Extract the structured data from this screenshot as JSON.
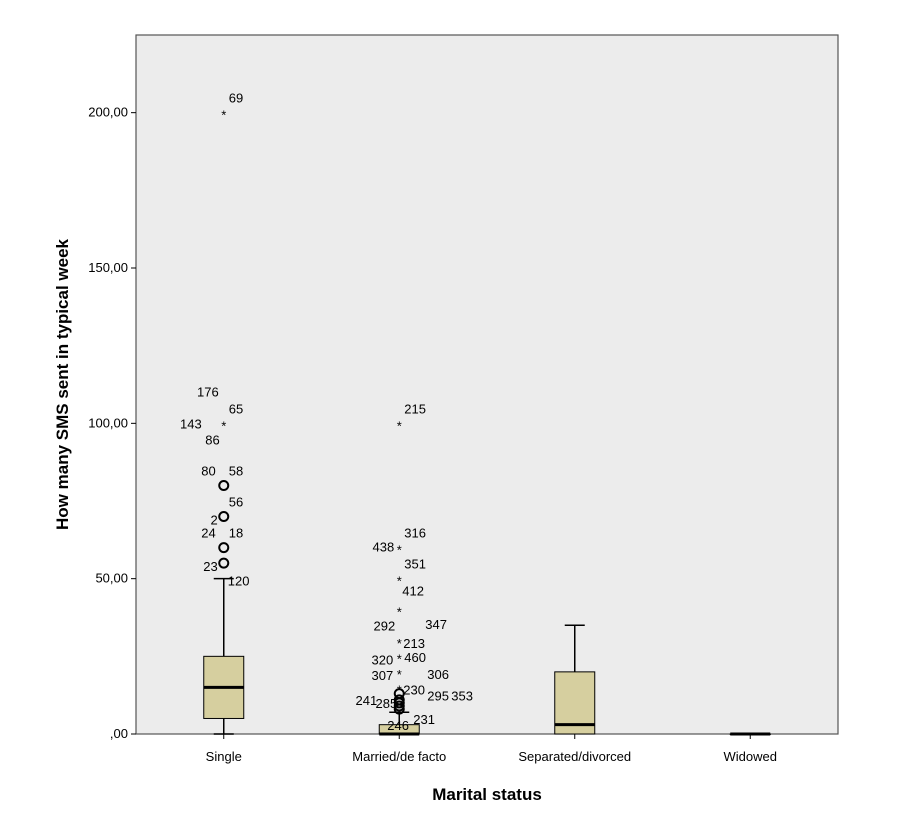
{
  "colors": {
    "plot_background": "#ececec",
    "box_fill": "#d6cf9f",
    "stroke": "#000000"
  },
  "chart_data": {
    "type": "boxplot",
    "xlabel": "Marital status",
    "ylabel": "How many SMS sent in typical week",
    "ylim": [
      0,
      225
    ],
    "yticks": [
      {
        "value": 0,
        "label": ",00"
      },
      {
        "value": 50,
        "label": "50,00"
      },
      {
        "value": 100,
        "label": "100,00"
      },
      {
        "value": 150,
        "label": "150,00"
      },
      {
        "value": 200,
        "label": "200,00"
      }
    ],
    "grid": false,
    "categories": [
      "Single",
      "Married/de facto",
      "Separated/divorced",
      "Widowed"
    ],
    "boxes": [
      {
        "category": "Single",
        "whisker_low": 0,
        "q1": 5,
        "median": 15,
        "q3": 25,
        "whisker_high": 50,
        "outliers": [
          {
            "value": 200,
            "marker": "star",
            "labels": [
              {
                "text": "69",
                "pos": "upper-right"
              }
            ]
          },
          {
            "value": 100,
            "marker": "star",
            "labels": [
              {
                "text": "176",
                "pos": "upper-left-far"
              },
              {
                "text": "65",
                "pos": "upper-right"
              },
              {
                "text": "143",
                "pos": "left-far"
              },
              {
                "text": "86",
                "pos": "lower-left"
              }
            ]
          },
          {
            "value": 80,
            "marker": "circle",
            "labels": [
              {
                "text": "80",
                "pos": "upper-left"
              },
              {
                "text": "58",
                "pos": "upper-right"
              }
            ]
          },
          {
            "value": 70,
            "marker": "circle",
            "labels": [
              {
                "text": "2",
                "pos": "upper-left-near"
              },
              {
                "text": "56",
                "pos": "upper-right"
              }
            ]
          },
          {
            "value": 60,
            "marker": "circle",
            "labels": [
              {
                "text": "24",
                "pos": "upper-left"
              },
              {
                "text": "18",
                "pos": "upper-right"
              }
            ]
          },
          {
            "value": 55,
            "marker": "circle",
            "labels": [
              {
                "text": "23",
                "pos": "left"
              }
            ]
          },
          {
            "value": 50,
            "marker": "none",
            "labels": [
              {
                "text": "120",
                "pos": "right-near"
              }
            ]
          }
        ]
      },
      {
        "category": "Married/de facto",
        "whisker_low": 0,
        "q1": 0,
        "median": 0,
        "q3": 3,
        "whisker_high": 7,
        "outliers": [
          {
            "value": 100,
            "marker": "star",
            "labels": [
              {
                "text": "215",
                "pos": "upper-right"
              }
            ]
          },
          {
            "value": 60,
            "marker": "star",
            "labels": [
              {
                "text": "316",
                "pos": "upper-right"
              }
            ]
          },
          {
            "value": 50,
            "marker": "star",
            "labels": [
              {
                "text": "438",
                "pos": "upper-left-far"
              },
              {
                "text": "351",
                "pos": "upper-right"
              },
              {
                "text": "412",
                "pos": "lower-right"
              }
            ]
          },
          {
            "value": 40,
            "marker": "star",
            "labels": [
              {
                "text": "292",
                "pos": "lower-left"
              }
            ]
          },
          {
            "value": 30,
            "marker": "star",
            "labels": [
              {
                "text": "213",
                "pos": "right-near"
              },
              {
                "text": "347",
                "pos": "upper-right-far"
              }
            ]
          },
          {
            "value": 25,
            "marker": "star",
            "labels": [
              {
                "text": "320",
                "pos": "left"
              }
            ]
          },
          {
            "value": 20,
            "marker": "star",
            "labels": [
              {
                "text": "307",
                "pos": "left"
              },
              {
                "text": "460",
                "pos": "upper-right"
              },
              {
                "text": "306",
                "pos": "right-far"
              }
            ]
          },
          {
            "value": 15,
            "marker": "star",
            "labels": [
              {
                "text": "230",
                "pos": "right-near"
              }
            ]
          },
          {
            "value": 13,
            "marker": "circle",
            "labels": [
              {
                "text": "295",
                "pos": "right-far"
              },
              {
                "text": "353",
                "pos": "right-farther"
              }
            ]
          },
          {
            "value": 11,
            "marker": "circle",
            "labels": [
              {
                "text": "241",
                "pos": "left-far"
              },
              {
                "text": "285",
                "pos": "left-near"
              }
            ]
          },
          {
            "value": 10,
            "marker": "circle",
            "labels": []
          },
          {
            "value": 9,
            "marker": "circle",
            "labels": []
          },
          {
            "value": 8,
            "marker": "circle",
            "labels": [
              {
                "text": "246",
                "pos": "lower-right-near"
              },
              {
                "text": "231",
                "pos": "right-far-low"
              }
            ]
          }
        ]
      },
      {
        "category": "Separated/divorced",
        "whisker_low": 0,
        "q1": 0,
        "median": 3,
        "q3": 20,
        "whisker_high": 35,
        "outliers": []
      },
      {
        "category": "Widowed",
        "whisker_low": 0,
        "q1": 0,
        "median": 0,
        "q3": 0,
        "whisker_high": 0,
        "outliers": []
      }
    ]
  }
}
